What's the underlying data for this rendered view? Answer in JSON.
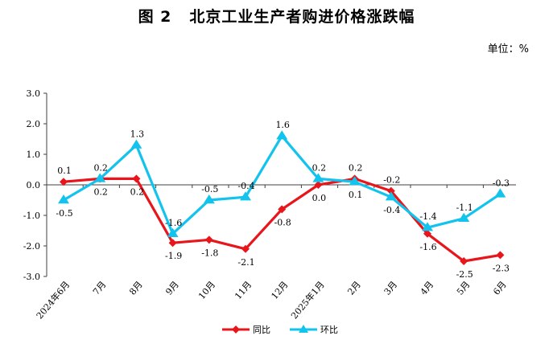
{
  "title": {
    "prefix": "图 2",
    "text": "北京工业生产者购进价格涨跌幅"
  },
  "unit": "单位：%",
  "colors": {
    "yoy": "#e8151b",
    "mom": "#12c3ee",
    "axis": "#404040"
  },
  "chart_data": {
    "type": "line",
    "title": "北京工业生产者购进价格涨跌幅",
    "categories": [
      "2024年6月",
      "7月",
      "8月",
      "9月",
      "10月",
      "11月",
      "12月",
      "2025年1月",
      "2月",
      "3月",
      "4月",
      "5月",
      "6月"
    ],
    "series": [
      {
        "name": "同比",
        "values": [
          0.1,
          0.2,
          0.2,
          -1.9,
          -1.8,
          -2.1,
          -0.8,
          0.0,
          0.2,
          -0.2,
          -1.6,
          -2.5,
          -2.3
        ]
      },
      {
        "name": "环比",
        "values": [
          -0.5,
          0.2,
          1.3,
          -1.6,
          -0.5,
          -0.4,
          1.6,
          0.2,
          0.1,
          -0.4,
          -1.4,
          -1.1,
          -0.3
        ]
      }
    ],
    "yticks": [
      "3.0",
      "2.0",
      "1.0",
      "0.0",
      "-1.0",
      "-2.0",
      "-3.0"
    ],
    "ylim": [
      -3.0,
      3.0
    ],
    "xlabel": "",
    "ylabel": "",
    "legend": "bottom"
  }
}
